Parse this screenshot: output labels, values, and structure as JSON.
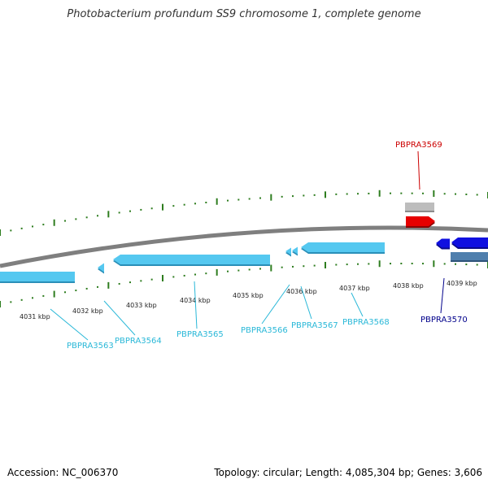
{
  "title": "Photobacterium profundum SS9 chromosome 1, complete genome",
  "footer": {
    "accession": "Accession: NC_006370",
    "summary": "Topology: circular; Length: 4,085,304 bp; Genes: 3,606"
  },
  "colors": {
    "backbone": "#7f7f7f",
    "tick": "#2e7d1f",
    "gene_light": "#55c8f0",
    "gene_light_edge": "#2a8fb8",
    "label_light": "#2ab8d8",
    "gene_dark": "#1010e0",
    "label_dark": "#00008b",
    "gene_red": "#e60000",
    "label_red": "#cc0000",
    "gene_grey": "#bdbdbd",
    "gene_steel": "#4f7fad"
  },
  "scale_labels": [
    "4031 kbp",
    "4032 kbp",
    "4033 kbp",
    "4034 kbp",
    "4035 kbp",
    "4036 kbp",
    "4037 kbp",
    "4038 kbp",
    "4039 kbp"
  ],
  "gene_labels": [
    {
      "id": "PBPRA3563",
      "color": "label_light"
    },
    {
      "id": "PBPRA3564",
      "color": "label_light"
    },
    {
      "id": "PBPRA3565",
      "color": "label_light"
    },
    {
      "id": "PBPRA3566",
      "color": "label_light"
    },
    {
      "id": "PBPRA3567",
      "color": "label_light"
    },
    {
      "id": "PBPRA3568",
      "color": "label_light"
    },
    {
      "id": "PBPRA3569",
      "color": "label_red"
    },
    {
      "id": "PBPRA3570",
      "color": "label_dark"
    }
  ]
}
